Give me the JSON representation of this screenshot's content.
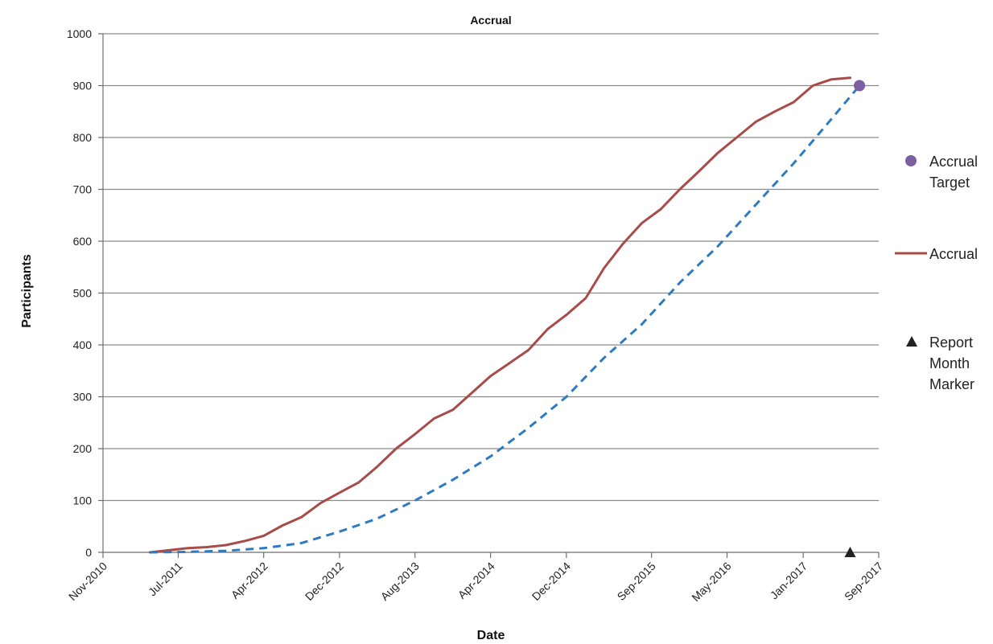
{
  "chart_data": {
    "type": "line",
    "title": "Accrual",
    "xlabel": "Date",
    "ylabel": "Participants",
    "ylim": [
      0,
      1000
    ],
    "yticks": [
      0,
      100,
      200,
      300,
      400,
      500,
      600,
      700,
      800,
      900,
      1000
    ],
    "xlim": [
      "2010-11-01",
      "2017-09-01"
    ],
    "xtick_labels": [
      "Nov-2010",
      "Jul-2011",
      "Apr-2012",
      "Dec-2012",
      "Aug-2013",
      "Apr-2014",
      "Dec-2014",
      "Sep-2015",
      "May-2016",
      "Jan-2017",
      "Sep-2017"
    ],
    "xtick_dates": [
      "2010-11-01",
      "2011-07-01",
      "2012-04-01",
      "2012-12-01",
      "2013-08-01",
      "2014-04-01",
      "2014-12-01",
      "2015-09-01",
      "2016-05-01",
      "2017-01-01",
      "2017-09-01"
    ],
    "grid": "horizontal",
    "legend_position": "right",
    "series": [
      {
        "name": "Accrual",
        "style": "solid",
        "color": "#a84c4a",
        "x": [
          "2011-04-01",
          "2011-06-01",
          "2011-08-01",
          "2011-10-01",
          "2011-12-01",
          "2012-02-01",
          "2012-04-01",
          "2012-06-01",
          "2012-08-01",
          "2012-10-01",
          "2012-12-01",
          "2013-02-01",
          "2013-04-01",
          "2013-06-01",
          "2013-08-01",
          "2013-10-01",
          "2013-12-01",
          "2014-02-01",
          "2014-04-01",
          "2014-06-01",
          "2014-08-01",
          "2014-10-01",
          "2014-12-01",
          "2015-02-01",
          "2015-04-01",
          "2015-06-01",
          "2015-08-01",
          "2015-10-01",
          "2015-12-01",
          "2016-02-01",
          "2016-04-01",
          "2016-06-01",
          "2016-08-01",
          "2016-10-01",
          "2016-12-01",
          "2017-02-01",
          "2017-04-01",
          "2017-06-01"
        ],
        "values": [
          0,
          4,
          8,
          10,
          14,
          22,
          32,
          52,
          68,
          95,
          115,
          135,
          165,
          200,
          228,
          258,
          275,
          308,
          340,
          365,
          390,
          430,
          458,
          490,
          548,
          595,
          635,
          662,
          700,
          735,
          770,
          800,
          830,
          850,
          868,
          900,
          912,
          915
        ]
      },
      {
        "name": "",
        "style": "dashed",
        "color": "#2f7bbf",
        "x": [
          "2011-04-01",
          "2011-08-01",
          "2011-12-01",
          "2012-04-01",
          "2012-08-01",
          "2012-12-01",
          "2013-04-01",
          "2013-08-01",
          "2013-12-01",
          "2014-04-01",
          "2014-08-01",
          "2014-12-01",
          "2015-04-01",
          "2015-08-01",
          "2015-12-01",
          "2016-04-01",
          "2016-08-01",
          "2016-12-01",
          "2017-04-01",
          "2017-07-01"
        ],
        "values": [
          0,
          1,
          3,
          8,
          18,
          40,
          65,
          100,
          140,
          185,
          240,
          300,
          375,
          440,
          520,
          590,
          670,
          750,
          835,
          900
        ]
      }
    ],
    "points": [
      {
        "name": "Accrual Target",
        "marker": "circle",
        "color": "#7b5fa0",
        "x": "2017-07-01",
        "y": 900
      },
      {
        "name": "Report Month Marker",
        "marker": "triangle",
        "color": "#222222",
        "x": "2017-06-01",
        "y": 0
      }
    ],
    "legend": [
      {
        "label_lines": [
          "Accrual",
          "Target"
        ],
        "marker": "circle",
        "color": "#7b5fa0"
      },
      {
        "label_lines": [
          "Accrual"
        ],
        "marker": "line",
        "color": "#a84c4a"
      },
      {
        "label_lines": [
          "Report",
          "Month",
          "Marker"
        ],
        "marker": "triangle",
        "color": "#222222"
      }
    ]
  }
}
